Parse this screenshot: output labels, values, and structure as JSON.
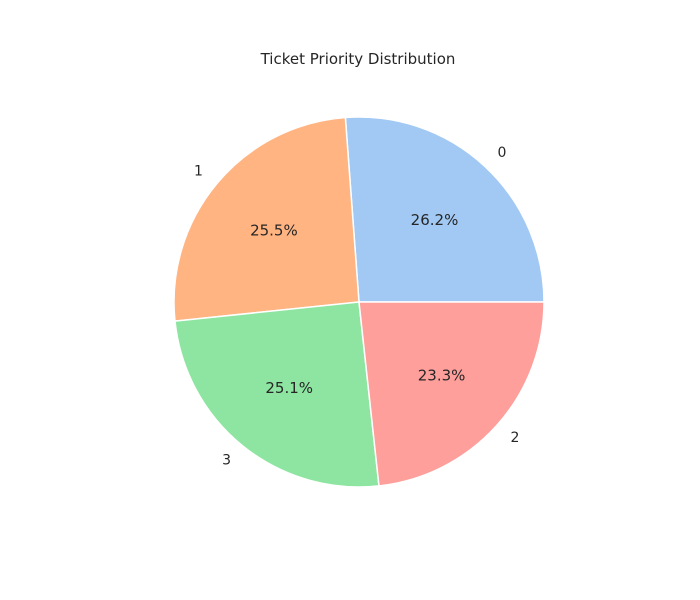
{
  "chart_data": {
    "type": "pie",
    "title": "Ticket Priority Distribution",
    "start_angle_deg": 0,
    "direction": "counterclockwise",
    "slices": [
      {
        "label": "0",
        "percent": 26.2,
        "percent_text": "26.2%",
        "color": "#a1c9f4"
      },
      {
        "label": "1",
        "percent": 25.5,
        "percent_text": "25.5%",
        "color": "#ffb482"
      },
      {
        "label": "3",
        "percent": 25.1,
        "percent_text": "25.1%",
        "color": "#8de5a1"
      },
      {
        "label": "2",
        "percent": 23.3,
        "percent_text": "23.3%",
        "color": "#ff9f9b"
      }
    ],
    "legend": "none",
    "edge_color": "#ffffff"
  }
}
